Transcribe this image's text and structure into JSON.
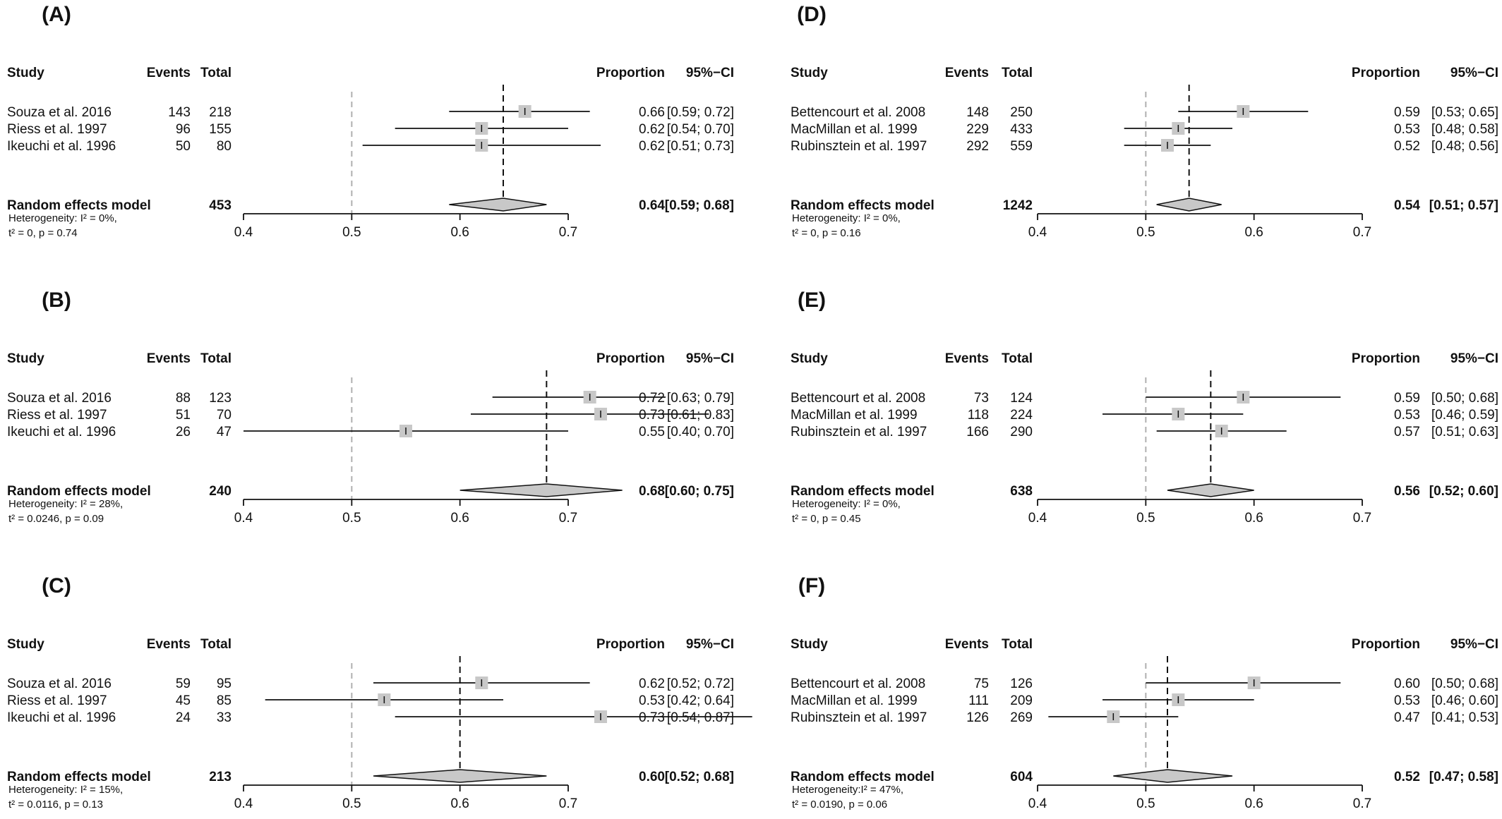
{
  "headers": {
    "study": "Study",
    "events": "Events",
    "total": "Total",
    "proportion": "Proportion",
    "ci": "95%−CI"
  },
  "chart_data": [
    {
      "type": "forest",
      "panel": "(A)",
      "xlim": [
        0.4,
        0.7
      ],
      "xticks": [
        "0.4",
        "0.5",
        "0.6",
        "0.7"
      ],
      "null_line": 0.5,
      "studies": [
        {
          "study": "Souza et al. 2016",
          "events": "143",
          "total": "218",
          "prop": 0.66,
          "lower": 0.59,
          "upper": 0.72,
          "prop_text": "0.66",
          "ci_text": "[0.59; 0.72]"
        },
        {
          "study": "Riess et al.  1997",
          "events": "96",
          "total": "155",
          "prop": 0.62,
          "lower": 0.54,
          "upper": 0.7,
          "prop_text": "0.62",
          "ci_text": "[0.54; 0.70]"
        },
        {
          "study": "Ikeuchi et al.  1996",
          "events": "50",
          "total": "80",
          "prop": 0.62,
          "lower": 0.51,
          "upper": 0.73,
          "prop_text": "0.62",
          "ci_text": "[0.51; 0.73]"
        }
      ],
      "pooled": {
        "label": "Random effects model",
        "total": "453",
        "prop": 0.64,
        "lower": 0.59,
        "upper": 0.68,
        "prop_text": "0.64",
        "ci_text": "[0.59; 0.68]"
      },
      "heterogeneity": [
        "Heterogeneity: I² = 0%,",
        "t² = 0, p = 0.74"
      ]
    },
    {
      "type": "forest",
      "panel": "(B)",
      "xlim": [
        0.4,
        0.7
      ],
      "xticks": [
        "0.4",
        "0.5",
        "0.6",
        "0.7"
      ],
      "null_line": 0.5,
      "studies": [
        {
          "study": "Souza et al. 2016",
          "events": "88",
          "total": "123",
          "prop": 0.72,
          "lower": 0.63,
          "upper": 0.79,
          "prop_text": "0.72",
          "ci_text": "[0.63; 0.79]"
        },
        {
          "study": "Riess et al.  1997",
          "events": "51",
          "total": "70",
          "prop": 0.73,
          "lower": 0.61,
          "upper": 0.83,
          "prop_text": "0.73",
          "ci_text": "[0.61; 0.83]"
        },
        {
          "study": "Ikeuchi et al.  1996",
          "events": "26",
          "total": "47",
          "prop": 0.55,
          "lower": 0.4,
          "upper": 0.7,
          "prop_text": "0.55",
          "ci_text": "[0.40; 0.70]"
        }
      ],
      "pooled": {
        "label": "Random effects model",
        "total": "240",
        "prop": 0.68,
        "lower": 0.6,
        "upper": 0.75,
        "prop_text": "0.68",
        "ci_text": "[0.60; 0.75]"
      },
      "heterogeneity": [
        "Heterogeneity: I² = 28%,",
        "t² = 0.0246, p = 0.09"
      ]
    },
    {
      "type": "forest",
      "panel": "(C)",
      "xlim": [
        0.4,
        0.7
      ],
      "xticks": [
        "0.4",
        "0.5",
        "0.6",
        "0.7"
      ],
      "null_line": 0.5,
      "studies": [
        {
          "study": "Souza et al. 2016",
          "events": "59",
          "total": "95",
          "prop": 0.62,
          "lower": 0.52,
          "upper": 0.72,
          "prop_text": "0.62",
          "ci_text": "[0.52; 0.72]"
        },
        {
          "study": "Riess et al.  1997",
          "events": "45",
          "total": "85",
          "prop": 0.53,
          "lower": 0.42,
          "upper": 0.64,
          "prop_text": "0.53",
          "ci_text": "[0.42; 0.64]"
        },
        {
          "study": "Ikeuchi et al.  1996",
          "events": "24",
          "total": "33",
          "prop": 0.73,
          "lower": 0.54,
          "upper": 0.87,
          "prop_text": "0.73",
          "ci_text": "[0.54; 0.87]"
        }
      ],
      "pooled": {
        "label": "Random effects model",
        "total": "213",
        "prop": 0.6,
        "lower": 0.52,
        "upper": 0.68,
        "prop_text": "0.60",
        "ci_text": "[0.52; 0.68]"
      },
      "heterogeneity": [
        "Heterogeneity: I² = 15%,",
        "t² = 0.0116, p = 0.13"
      ]
    },
    {
      "type": "forest",
      "panel": "(D)",
      "xlim": [
        0.4,
        0.7
      ],
      "xticks": [
        "0.4",
        "0.5",
        "0.6",
        "0.7"
      ],
      "null_line": 0.5,
      "studies": [
        {
          "study": "Bettencourt  et al. 2008",
          "events": "148",
          "total": "250",
          "prop": 0.59,
          "lower": 0.53,
          "upper": 0.65,
          "prop_text": "0.59",
          "ci_text": "[0.53; 0.65]"
        },
        {
          "study": "MacMillan et al. 1999",
          "events": "229",
          "total": "433",
          "prop": 0.53,
          "lower": 0.48,
          "upper": 0.58,
          "prop_text": "0.53",
          "ci_text": "[0.48; 0.58]"
        },
        {
          "study": "Rubinsztein et al. 1997",
          "events": "292",
          "total": "559",
          "prop": 0.52,
          "lower": 0.48,
          "upper": 0.56,
          "prop_text": "0.52",
          "ci_text": "[0.48; 0.56]"
        }
      ],
      "pooled": {
        "label": "Random effects model",
        "total": "1242",
        "prop": 0.54,
        "lower": 0.51,
        "upper": 0.57,
        "prop_text": "0.54",
        "ci_text": "[0.51; 0.57]"
      },
      "heterogeneity": [
        "Heterogeneity: I² = 0%,",
        "t² = 0, p = 0.16"
      ]
    },
    {
      "type": "forest",
      "panel": "(E)",
      "xlim": [
        0.4,
        0.7
      ],
      "xticks": [
        "0.4",
        "0.5",
        "0.6",
        "0.7"
      ],
      "null_line": 0.5,
      "studies": [
        {
          "study": "Bettencourt et al. 2008",
          "events": "73",
          "total": "124",
          "prop": 0.59,
          "lower": 0.5,
          "upper": 0.68,
          "prop_text": "0.59",
          "ci_text": "[0.50; 0.68]"
        },
        {
          "study": "MacMillan et al. 1999",
          "events": "118",
          "total": "224",
          "prop": 0.53,
          "lower": 0.46,
          "upper": 0.59,
          "prop_text": "0.53",
          "ci_text": "[0.46; 0.59]"
        },
        {
          "study": "Rubinsztein et al. 1997",
          "events": "166",
          "total": "290",
          "prop": 0.57,
          "lower": 0.51,
          "upper": 0.63,
          "prop_text": "0.57",
          "ci_text": "[0.51; 0.63]"
        }
      ],
      "pooled": {
        "label": "Random effects model",
        "total": "638",
        "prop": 0.56,
        "lower": 0.52,
        "upper": 0.6,
        "prop_text": "0.56",
        "ci_text": "[0.52; 0.60]"
      },
      "heterogeneity": [
        "Heterogeneity: I² = 0%,",
        "t² = 0, p = 0.45"
      ]
    },
    {
      "type": "forest",
      "panel": "(F)",
      "xlim": [
        0.4,
        0.7
      ],
      "xticks": [
        "0.4",
        "0.5",
        "0.6",
        "0.7"
      ],
      "null_line": 0.5,
      "studies": [
        {
          "study": "Bettencourt  et al. 2008",
          "events": "75",
          "total": "126",
          "prop": 0.6,
          "lower": 0.5,
          "upper": 0.68,
          "prop_text": "0.60",
          "ci_text": "[0.50; 0.68]"
        },
        {
          "study": "MacMillan et al. 1999",
          "events": "111",
          "total": "209",
          "prop": 0.53,
          "lower": 0.46,
          "upper": 0.6,
          "prop_text": "0.53",
          "ci_text": "[0.46; 0.60]"
        },
        {
          "study": "Rubinsztein  et al. 1997",
          "events": "126",
          "total": "269",
          "prop": 0.47,
          "lower": 0.41,
          "upper": 0.53,
          "prop_text": "0.47",
          "ci_text": "[0.41; 0.53]"
        }
      ],
      "pooled": {
        "label": "Random effects model",
        "total": "604",
        "prop": 0.52,
        "lower": 0.47,
        "upper": 0.58,
        "prop_text": "0.52",
        "ci_text": "[0.47; 0.58]"
      },
      "heterogeneity": [
        "Heterogeneity:I² = 47%,",
        "t² = 0.0190, p = 0.06"
      ]
    }
  ]
}
